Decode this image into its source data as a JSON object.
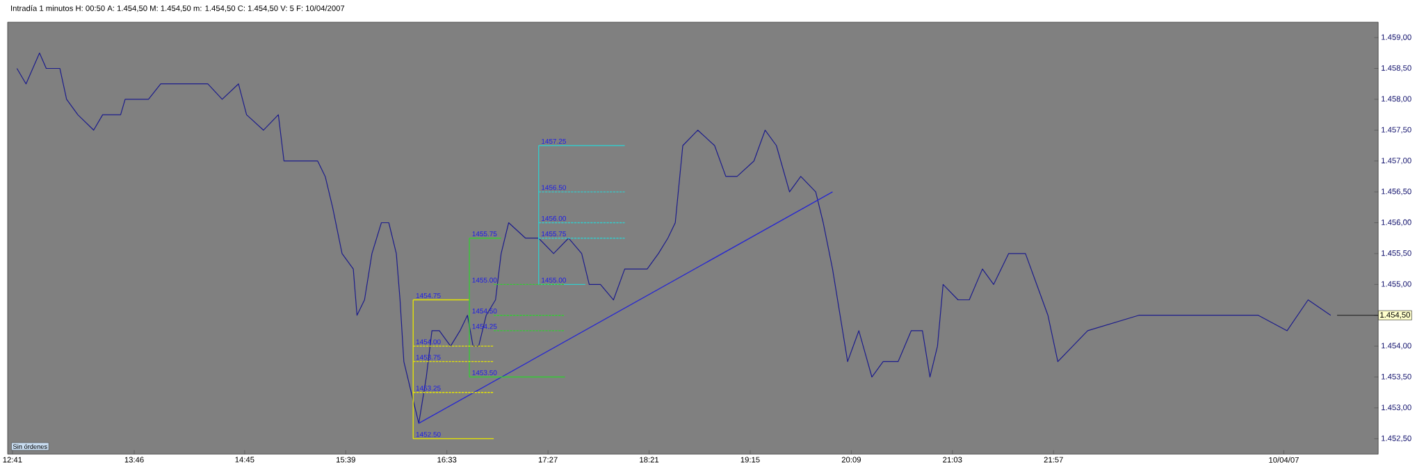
{
  "chart_data": {
    "type": "line",
    "title": "Intradía 1 minutos  H: 00:50  A: 1.454,50  M: 1.454,50  m: 1.454,50  C: 1.454,50  V: 5  F: 10/04/2007",
    "xlim": [
      12.64,
      24.84
    ],
    "ylim": [
      1452.25,
      1459.25
    ],
    "xticks": [
      {
        "value": 12.683,
        "label": "12:41"
      },
      {
        "value": 13.767,
        "label": "13:46"
      },
      {
        "value": 14.75,
        "label": "14:45"
      },
      {
        "value": 15.65,
        "label": "15:39"
      },
      {
        "value": 16.55,
        "label": "16:33"
      },
      {
        "value": 17.45,
        "label": "17:27"
      },
      {
        "value": 18.35,
        "label": "18:21"
      },
      {
        "value": 19.25,
        "label": "19:15"
      },
      {
        "value": 20.15,
        "label": "20:09"
      },
      {
        "value": 21.05,
        "label": "21:03"
      },
      {
        "value": 21.95,
        "label": "21:57"
      },
      {
        "value": 24,
        "label": "10/04/07"
      }
    ],
    "yticks": [
      {
        "value": 1452.5,
        "label": "1.452,50"
      },
      {
        "value": 1453,
        "label": "1.453,00"
      },
      {
        "value": 1453.5,
        "label": "1.453,50"
      },
      {
        "value": 1454,
        "label": "1.454,00"
      },
      {
        "value": 1454.5,
        "label": null
      },
      {
        "value": 1455,
        "label": "1.455,00"
      },
      {
        "value": 1455.5,
        "label": "1.455,50"
      },
      {
        "value": 1456,
        "label": "1.456,00"
      },
      {
        "value": 1456.5,
        "label": "1.456,50"
      },
      {
        "value": 1457,
        "label": "1.457,00"
      },
      {
        "value": 1457.5,
        "label": "1.457,50"
      },
      {
        "value": 1458,
        "label": "1.458,00"
      },
      {
        "value": 1458.5,
        "label": "1.458,50"
      },
      {
        "value": 1459,
        "label": "1.459,00"
      }
    ],
    "series": [
      {
        "color": "#1c1c8c",
        "x": [
          12.723,
          12.804,
          12.924,
          12.984,
          13.105,
          13.165,
          13.265,
          13.406,
          13.486,
          13.646,
          13.686,
          13.894,
          14.003,
          14.24,
          14.422,
          14.55,
          14.695,
          14.767,
          14.917,
          15.05,
          15.1,
          15.233,
          15.4,
          15.467,
          15.533,
          15.617,
          15.717,
          15.75,
          15.817,
          15.883,
          15.967,
          16.033,
          16.1,
          16.133,
          16.167,
          16.233,
          16.3,
          16.367,
          16.417,
          16.483,
          16.583,
          16.667,
          16.733,
          16.783,
          16.833,
          16.9,
          16.983,
          17.033,
          17.1,
          17.25,
          17.367,
          17.5,
          17.633,
          17.75,
          17.817,
          17.917,
          18.033,
          18.133,
          18.333,
          18.433,
          18.517,
          18.583,
          18.65,
          18.783,
          18.933,
          19.033,
          19.133,
          19.283,
          19.383,
          19.483,
          19.6,
          19.7,
          19.833,
          19.9,
          19.983,
          20.05,
          20.117,
          20.217,
          20.333,
          20.433,
          20.567,
          20.683,
          20.783,
          20.85,
          20.917,
          20.967,
          21.1,
          21.2,
          21.317,
          21.417,
          21.55,
          21.7,
          21.8,
          21.9,
          21.988,
          22.254,
          22.709,
          23.127,
          23.772,
          24.029,
          24.216,
          24.417
        ],
        "values": [
          1458.5,
          1458.25,
          1458.75,
          1458.5,
          1458.5,
          1458.0,
          1457.75,
          1457.5,
          1457.75,
          1457.75,
          1458.0,
          1458.0,
          1458.25,
          1458.25,
          1458.25,
          1458.0,
          1458.25,
          1457.75,
          1457.5,
          1457.75,
          1457.0,
          1457.0,
          1457.0,
          1456.75,
          1456.25,
          1455.5,
          1455.25,
          1454.5,
          1454.75,
          1455.5,
          1456.0,
          1456.0,
          1455.5,
          1454.75,
          1453.75,
          1453.25,
          1452.75,
          1453.5,
          1454.25,
          1454.25,
          1454.0,
          1454.25,
          1454.5,
          1454.0,
          1454.0,
          1454.5,
          1454.75,
          1455.5,
          1456.0,
          1455.75,
          1455.75,
          1455.5,
          1455.75,
          1455.5,
          1455.0,
          1455.0,
          1454.75,
          1455.25,
          1455.25,
          1455.5,
          1455.75,
          1456.0,
          1457.25,
          1457.5,
          1457.25,
          1456.75,
          1456.75,
          1457.0,
          1457.5,
          1457.25,
          1456.5,
          1456.75,
          1456.5,
          1456.0,
          1455.25,
          1454.5,
          1453.75,
          1454.25,
          1453.5,
          1453.75,
          1453.75,
          1454.25,
          1454.25,
          1453.5,
          1454.0,
          1455.0,
          1454.75,
          1454.75,
          1455.25,
          1455.0,
          1455.5,
          1455.5,
          1455.0,
          1454.5,
          1453.75,
          1454.25,
          1454.5,
          1454.5,
          1454.5,
          1454.25,
          1454.75,
          1454.5
        ]
      },
      {
        "color": "#2828d0",
        "x": [
          16.3,
          19.983
        ],
        "values": [
          1452.75,
          1456.5
        ]
      },
      {
        "color": "#e6e600",
        "x": [
          16.25,
          16.25
        ],
        "values": [
          1452.5,
          1454.75
        ]
      },
      {
        "color": "#e6e600",
        "x": [
          16.25,
          16.75
        ],
        "values": [
          1454.75,
          1454.75
        ]
      },
      {
        "color": "#e6e600",
        "line_style": "dashed",
        "x": [
          16.25,
          16.967
        ],
        "values": [
          1454.0,
          1454.0
        ]
      },
      {
        "color": "#e6e600",
        "line_style": "dashed",
        "x": [
          16.25,
          16.967
        ],
        "values": [
          1453.75,
          1453.75
        ]
      },
      {
        "color": "#e6e600",
        "line_style": "dashed",
        "x": [
          16.25,
          16.967
        ],
        "values": [
          1453.25,
          1453.25
        ]
      },
      {
        "color": "#e6e600",
        "x": [
          16.25,
          16.967
        ],
        "values": [
          1452.5,
          1452.5
        ]
      },
      {
        "color": "#33cc33",
        "x": [
          16.75,
          16.75
        ],
        "values": [
          1453.5,
          1455.75
        ]
      },
      {
        "color": "#33cc33",
        "x": [
          16.75,
          17.033
        ],
        "values": [
          1455.75,
          1455.75
        ]
      },
      {
        "color": "#33cc33",
        "line_style": "dashed",
        "x": [
          16.967,
          17.6
        ],
        "values": [
          1455.0,
          1455.0
        ]
      },
      {
        "color": "#33cc33",
        "line_style": "dashed",
        "x": [
          16.967,
          17.6
        ],
        "values": [
          1454.5,
          1454.5
        ]
      },
      {
        "color": "#33cc33",
        "line_style": "dashed",
        "x": [
          16.967,
          17.6
        ],
        "values": [
          1454.25,
          1454.25
        ]
      },
      {
        "color": "#33cc33",
        "x": [
          16.75,
          17.6
        ],
        "values": [
          1453.5,
          1453.5
        ]
      },
      {
        "color": "#33cccc",
        "x": [
          17.367,
          17.367
        ],
        "values": [
          1455.0,
          1457.25
        ]
      },
      {
        "color": "#33cccc",
        "x": [
          17.367,
          18.133
        ],
        "values": [
          1457.25,
          1457.25
        ]
      },
      {
        "color": "#33cccc",
        "line_style": "dashed",
        "x": [
          17.367,
          18.133
        ],
        "values": [
          1456.5,
          1456.5
        ]
      },
      {
        "color": "#33cccc",
        "line_style": "dashed",
        "x": [
          17.367,
          18.133
        ],
        "values": [
          1456.0,
          1456.0
        ]
      },
      {
        "color": "#33cccc",
        "line_style": "dashed",
        "x": [
          17.367,
          18.133
        ],
        "values": [
          1455.75,
          1455.75
        ]
      },
      {
        "color": "#33cccc",
        "x": [
          17.367,
          17.783
        ],
        "values": [
          1455.0,
          1455.0
        ]
      }
    ],
    "ref_lines": [
      {
        "axis": "y",
        "value": 1454.5,
        "label": "1.454,50",
        "color": "#000000"
      }
    ],
    "annotations": [
      {
        "text": "1454.75",
        "x": 16.267,
        "y": 1454.75
      },
      {
        "text": "1454.00",
        "x": 16.267,
        "y": 1454.0
      },
      {
        "text": "1453.75",
        "x": 16.267,
        "y": 1453.75
      },
      {
        "text": "1453.25",
        "x": 16.267,
        "y": 1453.25
      },
      {
        "text": "1452.50",
        "x": 16.267,
        "y": 1452.5
      },
      {
        "text": "1455.75",
        "x": 16.767,
        "y": 1455.75
      },
      {
        "text": "1455.00",
        "x": 16.767,
        "y": 1455.0
      },
      {
        "text": "1454.50",
        "x": 16.767,
        "y": 1454.5
      },
      {
        "text": "1454.25",
        "x": 16.767,
        "y": 1454.25
      },
      {
        "text": "1453.50",
        "x": 16.767,
        "y": 1453.5
      },
      {
        "text": "1457.25",
        "x": 17.383,
        "y": 1457.25
      },
      {
        "text": "1456.50",
        "x": 17.383,
        "y": 1456.5
      },
      {
        "text": "1456.00",
        "x": 17.383,
        "y": 1456.0
      },
      {
        "text": "1455.75",
        "x": 17.383,
        "y": 1455.75
      },
      {
        "text": "1455.00",
        "x": 17.383,
        "y": 1455.0
      },
      "Sin órdenes"
    ]
  }
}
